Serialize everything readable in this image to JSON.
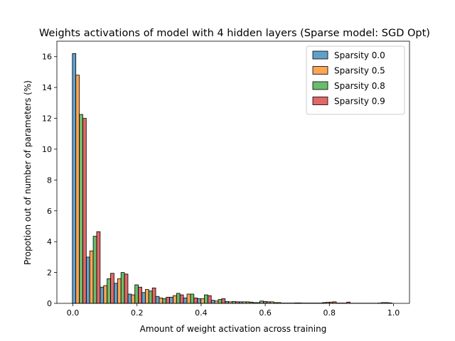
{
  "chart_data": {
    "type": "bar",
    "title": "Weights activations of model with 4 hidden layers (Sparse model: SGD Opt)",
    "xlabel": "Amount of weight activation across training",
    "ylabel": "Propotion out of number of parameters (%)",
    "xlim": [
      -0.05,
      1.05
    ],
    "ylim": [
      0,
      17
    ],
    "xticks": [
      "0.0",
      "0.2",
      "0.4",
      "0.6",
      "0.8",
      "1.0"
    ],
    "yticks": [
      "0",
      "2",
      "4",
      "6",
      "8",
      "10",
      "12",
      "14",
      "16"
    ],
    "legend_position": "top-right",
    "bin_centers": [
      0.02,
      0.0633,
      0.1067,
      0.15,
      0.1933,
      0.2367,
      0.28,
      0.3233,
      0.3667,
      0.41,
      0.4533,
      0.4967,
      0.54,
      0.5833,
      0.6267,
      0.67,
      0.7133,
      0.7567,
      0.8,
      0.8433,
      0.8867,
      0.93,
      0.9733
    ],
    "series": [
      {
        "name": "Sparsity 0.0",
        "color": "#1f77b4",
        "values": [
          16.2,
          3.0,
          1.05,
          1.3,
          0.6,
          0.7,
          0.45,
          0.4,
          0.35,
          0.3,
          0.2,
          0.12,
          0.1,
          0.05,
          0.1,
          0.02,
          0.03,
          0.02,
          0.05,
          0.02,
          0.01,
          0.01,
          0.02
        ]
      },
      {
        "name": "Sparsity 0.5",
        "color": "#ff7f0e",
        "values": [
          14.8,
          3.4,
          1.15,
          1.6,
          0.55,
          0.9,
          0.35,
          0.5,
          0.6,
          0.3,
          0.15,
          0.1,
          0.1,
          0.05,
          0.1,
          0.02,
          0.03,
          0.02,
          0.07,
          0.02,
          0.01,
          0.01,
          0.05
        ]
      },
      {
        "name": "Sparsity 0.8",
        "color": "#2ca02c",
        "values": [
          12.25,
          4.35,
          1.6,
          2.0,
          1.2,
          0.8,
          0.3,
          0.65,
          0.6,
          0.55,
          0.25,
          0.12,
          0.1,
          0.15,
          0.05,
          0.02,
          0.02,
          0.02,
          0.08,
          0.02,
          0.01,
          0.01,
          0.05
        ]
      },
      {
        "name": "Sparsity 0.9",
        "color": "#d62728",
        "values": [
          12.0,
          4.65,
          1.95,
          1.9,
          1.05,
          1.0,
          0.4,
          0.55,
          0.35,
          0.5,
          0.3,
          0.1,
          0.08,
          0.12,
          0.05,
          0.02,
          0.02,
          0.02,
          0.1,
          0.08,
          0.01,
          0.01,
          0.03
        ]
      }
    ]
  }
}
